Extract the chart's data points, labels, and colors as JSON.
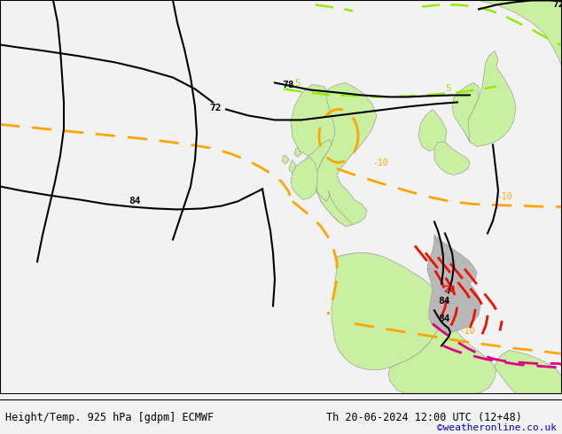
{
  "title_left": "Height/Temp. 925 hPa [gdpm] ECMWF",
  "title_right": "Th 20-06-2024 12:00 UTC (12+48)",
  "credit": "©weatheronline.co.uk",
  "bg_color": "#e0e0e0",
  "land_green": "#c8f0a0",
  "land_gray": "#b8b8b8",
  "bottom_bar_color": "#f2f2f2",
  "fig_width": 6.34,
  "fig_height": 4.9,
  "dpi": 100,
  "label_fontsize": 8.5,
  "credit_fontsize": 8,
  "credit_color": "#0000cc"
}
